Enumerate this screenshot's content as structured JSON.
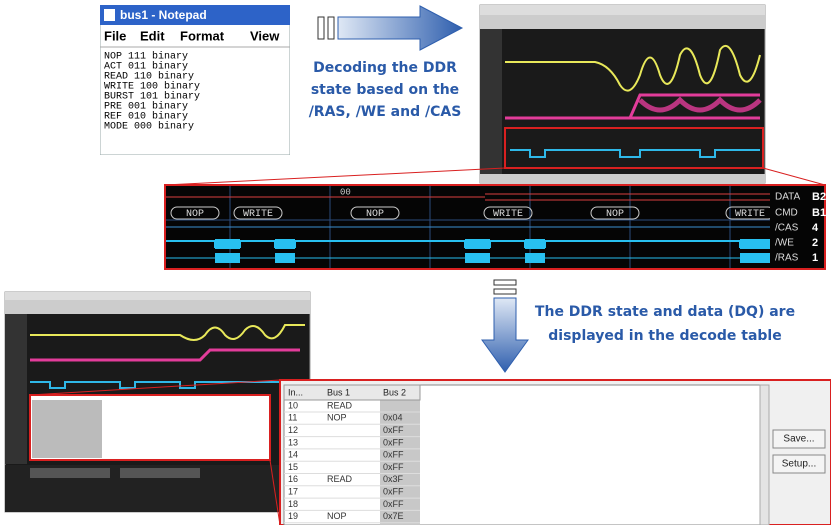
{
  "notepad": {
    "title": "bus1 - Notepad",
    "menu": [
      "File",
      "Edit",
      "Format",
      "View"
    ],
    "lines": [
      "NOP 111 binary",
      "ACT 011 binary",
      "READ 110 binary",
      "WRITE 100 binary",
      "BURST 101 binary",
      "PRE 001 binary",
      "REF 010 binary",
      "MODE 000 binary"
    ]
  },
  "captions": {
    "top": [
      "Decoding the DDR",
      "state based on the",
      "/RAS, /WE and /CAS"
    ],
    "bottom": [
      "The DDR state and data (DQ) are",
      "displayed in the decode table"
    ]
  },
  "zoom": {
    "data_values": [
      "00"
    ],
    "commands": [
      "NOP",
      "WRITE",
      "NOP",
      "WRITE",
      "NOP",
      "WRITE"
    ],
    "rows": [
      {
        "label": "DATA",
        "id": "B2"
      },
      {
        "label": "CMD",
        "id": "B1"
      },
      {
        "label": "/CAS",
        "id": "4"
      },
      {
        "label": "/WE",
        "id": "2"
      },
      {
        "label": "/RAS",
        "id": "1"
      }
    ]
  },
  "decode_table": {
    "headers": [
      "In...",
      "Bus 1",
      "Bus 2"
    ],
    "rows": [
      [
        10,
        "READ",
        null
      ],
      [
        11,
        "NOP",
        "0x04"
      ],
      [
        12,
        null,
        "0xFF"
      ],
      [
        13,
        null,
        "0xFF"
      ],
      [
        14,
        null,
        "0xFF"
      ],
      [
        15,
        null,
        "0xFF"
      ],
      [
        16,
        "READ",
        "0x3F"
      ],
      [
        17,
        null,
        "0xFF"
      ],
      [
        18,
        null,
        "0xFF"
      ],
      [
        19,
        "NOP",
        "0x7E"
      ]
    ],
    "buttons": [
      "Save...",
      "Setup..."
    ]
  }
}
